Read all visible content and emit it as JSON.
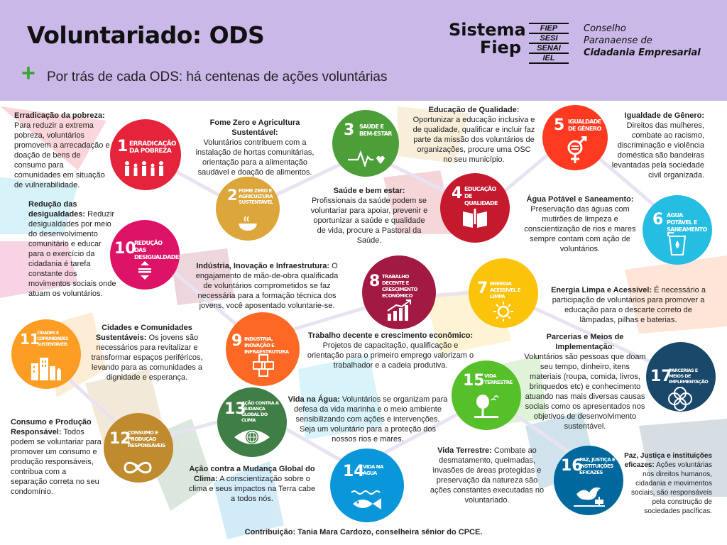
{
  "header": {
    "title": "Voluntariado: ODS",
    "plus": "+",
    "subtitle": "Por trás de cada ODS: há centenas de ações voluntárias",
    "logo_sistema": "Sistema",
    "logo_fiep": "Fiep",
    "logo_boxes": [
      "FIEP",
      "SESI",
      "SENAI",
      "IEL"
    ],
    "logo_cp_line1": "Conselho",
    "logo_cp_line2": "Paranaense de",
    "logo_cp_line3": "Cidadania Empresarial"
  },
  "goals": [
    {
      "num": "1",
      "name": "Erradicação da pobreza",
      "color": "#e5243b",
      "icon": "people-icon"
    },
    {
      "num": "2",
      "name": "Fome zero e agricultura sustentável",
      "color": "#dda63a",
      "icon": "bowl-icon"
    },
    {
      "num": "3",
      "name": "Saúde e bem-estar",
      "color": "#4c9f38",
      "icon": "heartbeat-icon"
    },
    {
      "num": "4",
      "name": "Educação de qualidade",
      "color": "#c5192d",
      "icon": "book-icon"
    },
    {
      "num": "5",
      "name": "Igualdade de gênero",
      "color": "#ff3a21",
      "icon": "gender-icon"
    },
    {
      "num": "6",
      "name": "Água potável e saneamento",
      "color": "#26bde2",
      "icon": "water-icon"
    },
    {
      "num": "7",
      "name": "Energia acessível e limpa",
      "color": "#fcc30b",
      "icon": "sun-icon"
    },
    {
      "num": "8",
      "name": "Trabalho decente e crescimento econômico",
      "color": "#a21942",
      "icon": "growth-icon"
    },
    {
      "num": "9",
      "name": "Indústria, inovação e infraestrutura",
      "color": "#fd6925",
      "icon": "cubes-icon"
    },
    {
      "num": "10",
      "name": "Redução das desigualdades",
      "color": "#dd1367",
      "icon": "equality-icon"
    },
    {
      "num": "11",
      "name": "Cidades e comunidades sustentáveis",
      "color": "#fd9d24",
      "icon": "city-icon"
    },
    {
      "num": "12",
      "name": "Consumo e produção responsáveis",
      "color": "#bf8b2e",
      "icon": "infinity-icon"
    },
    {
      "num": "13",
      "name": "Ação contra a mudança global do clima",
      "color": "#3f7e44",
      "icon": "eye-globe-icon"
    },
    {
      "num": "14",
      "name": "Vida na água",
      "color": "#0a97d9",
      "icon": "fish-icon"
    },
    {
      "num": "15",
      "name": "Vida terrestre",
      "color": "#56c02b",
      "icon": "tree-icon"
    },
    {
      "num": "16",
      "name": "Paz, justiça e instituições eficazes",
      "color": "#00689d",
      "icon": "dove-icon"
    },
    {
      "num": "17",
      "name": "Parcerias e meios de implementação",
      "color": "#19486a",
      "icon": "rings-icon"
    }
  ],
  "texts": {
    "t1_title": "Erradicação da pobreza:",
    "t1_body": "Para reduzir a extrema pobreza, voluntários promovem a arrecadação e doação de bens de consumo para comunidades em situação de vulnerabilidade.",
    "t2_title": "Fome Zero e Agricultura Sustentável:",
    "t2_body": "Voluntários contribuem com a instalação de hortas comunitárias, orientação para a alimentação saudável e doação de alimentos.",
    "t3_title": "Saúde e bem estar:",
    "t3_body": "Profissionais da saúde podem se voluntariar para apoiar, prevenir e oportunizar a saúde e qualidade de vida, procure a Pastoral da Saúde.",
    "t4_title": "Educação de Qualidade:",
    "t4_body": "Oportunizar a educação inclusiva e de qualidade, qualificar e incluir faz parte da missão dos voluntários de organizações, procure uma OSC no seu município.",
    "t5_title": "Igualdade de Gênero:",
    "t5_body": "Direitos das mulheres, combate ao racismo, discriminação e violência doméstica são bandeiras levantadas pela sociedade civil organizada.",
    "t6_title": "Água Potável e Saneamento:",
    "t6_body": "Preservação das águas com mutirões de limpeza e conscientização de rios e mares sempre contam com ação de voluntários.",
    "t7_title": "Energia Limpa e Acessível:",
    "t7_body": "É necessário a participação de voluntários para promover a educação para o descarte correto de lâmpadas, pilhas e baterias.",
    "t8_title": "Trabalho decente e crescimento econômico:",
    "t8_body": "Projetos de capacitação, qualificação e orientação para o primeiro emprego valorizam o trabalhador e a cadeia produtiva.",
    "t9_title": "Indústria, Inovação e Infraestrutura:",
    "t9_body": "O engajamento de mão-de-obra qualificada de voluntários comprometidos se faz necessária para a formação técnica dos jovens, você aposentado voluntarie-se.",
    "t10_title": "Redução das desigualdades:",
    "t10_body": "Reduzir desigualdades por meio do desenvolvimento comunitário e educar para o exercício da cidadania é tarefa constante dos movimentos sociais onde atuam os voluntários.",
    "t11_title": "Cidades e Comunidades Sustentáveis:",
    "t11_body": "Os jovens são necessários para revitalizar e transformar espaços periféricos, levando para as comunidades a dignidade e esperança.",
    "t12_title": "Consumo e Produção Responsável:",
    "t12_body": "Todos podem se voluntariar para promover um consumo e produção responsáveis, contribua com a separação correta no seu condomínio.",
    "t13_title": "Ação contra a Mudança Global do Clima:",
    "t13_body": "A conscientização sobre o clima e seus impactos na Terra cabe a todos nós.",
    "t14_title": "Vida na Água:",
    "t14_body": "Voluntários se organizam para defesa da vida marinha e o meio ambiente sensibilizando com ações e intervenções. Seja um voluntário para a proteção dos nossos rios e mares.",
    "t15_title": "Vida Terrestre:",
    "t15_body": "Combate ao desmatamento, queimadas, invasões de áreas protegidas e preservação da natureza são ações constantes executadas no voluntariado.",
    "t16_title": "Paz, Justiça e instituições eficazes:",
    "t16_body": "Ações voluntárias nos direitos humanos, cidadania e movimentos sociais, são responsáveis pela construção de sociedades pacíficas.",
    "t17_title": "Parcerias e Meios de Implementação",
    "t17_body": "Voluntários são pessoas que doam seu tempo, dinheiro, itens materiais (roupa, comida, livros, brinquedos etc) e conhecimento atuando nas mais diversas causas sociais como os apresentados nos objetivos de desenvolvimento sustentável."
  },
  "footer": "Contribuição: Tania Mara Cardozo, conselheira sênior do CPCE."
}
